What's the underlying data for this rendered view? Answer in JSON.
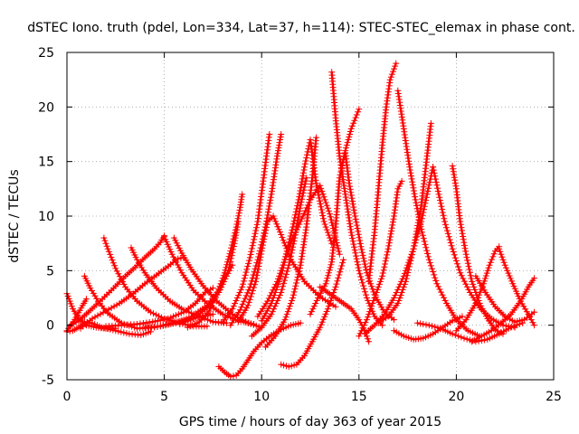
{
  "chart_data": {
    "type": "scatter",
    "title": "dSTEC Iono. truth (pdel, Lon=334, Lat=37, h=114): STEC-STEC_elemax in phase cont.",
    "xlabel": "GPS time / hours of day 363 of year 2015",
    "ylabel": "dSTEC  / TECUs",
    "xlim": [
      0,
      25
    ],
    "ylim": [
      -5,
      25
    ],
    "xticks": [
      0,
      5,
      10,
      15,
      20,
      25
    ],
    "yticks": [
      -5,
      0,
      5,
      10,
      15,
      20,
      25
    ],
    "grid": true,
    "marker": "plus",
    "color": "#ff0000",
    "series": [
      {
        "x": [
          0.0,
          0.3,
          0.6,
          1.0,
          1.5,
          2.0,
          2.5
        ],
        "y": [
          2.9,
          1.5,
          0.6,
          0.0,
          -0.2,
          -0.3,
          -0.3
        ]
      },
      {
        "x": [
          0.0,
          0.3,
          0.6,
          0.9,
          1.3,
          1.8,
          2.5,
          3.2,
          3.8,
          4.3
        ],
        "y": [
          -0.6,
          -0.5,
          -0.2,
          0.3,
          0.2,
          -0.2,
          -0.5,
          -0.8,
          -0.9,
          -0.6
        ]
      },
      {
        "x": [
          0.0,
          0.4,
          0.8,
          1.0
        ],
        "y": [
          -0.5,
          0.5,
          1.8,
          2.4
        ]
      },
      {
        "x": [
          0.9,
          1.2,
          1.6,
          2.1,
          2.8,
          3.6,
          4.5,
          5.4,
          6.2,
          7.0,
          7.5
        ],
        "y": [
          4.5,
          3.4,
          2.2,
          1.1,
          0.2,
          -0.3,
          -0.2,
          0.2,
          0.5,
          0.8,
          1.0
        ]
      },
      {
        "x": [
          1.9,
          2.1,
          2.5,
          3.0,
          3.6,
          4.3,
          5.0,
          5.8,
          6.5,
          7.2
        ],
        "y": [
          8.0,
          7.0,
          5.2,
          3.5,
          2.2,
          1.2,
          0.6,
          0.2,
          -0.1,
          -0.1
        ]
      },
      {
        "x": [
          3.3,
          3.6,
          4.0,
          4.6,
          5.3,
          6.0,
          6.8,
          7.5,
          8.2
        ],
        "y": [
          7.1,
          6.0,
          4.8,
          3.4,
          2.2,
          1.4,
          0.8,
          0.3,
          0.2
        ]
      },
      {
        "x": [
          0.2,
          0.6,
          1.1,
          1.7,
          2.4,
          3.0,
          3.5,
          4.0,
          4.5,
          4.8,
          5.0
        ],
        "y": [
          0.0,
          0.4,
          1.2,
          2.2,
          3.4,
          4.5,
          5.3,
          6.2,
          7.0,
          7.6,
          8.2
        ]
      },
      {
        "x": [
          0.7,
          1.3,
          2.0,
          2.7,
          3.4,
          4.0,
          4.6,
          5.2,
          5.7,
          6.0
        ],
        "y": [
          -0.3,
          0.6,
          1.3,
          2.0,
          2.9,
          3.8,
          4.6,
          5.4,
          6.1,
          6.2
        ]
      },
      {
        "x": [
          5.0,
          5.4,
          5.9,
          6.5,
          7.2,
          8.0,
          8.8,
          9.6
        ],
        "y": [
          8.1,
          6.5,
          4.8,
          3.2,
          2.0,
          1.0,
          0.4,
          0.1
        ]
      },
      {
        "x": [
          5.5,
          5.9,
          6.4,
          7.0,
          7.7,
          8.5,
          9.3,
          10.0
        ],
        "y": [
          8.0,
          6.6,
          5.1,
          3.6,
          2.2,
          1.0,
          0.2,
          -0.2
        ]
      },
      {
        "x": [
          2.0,
          2.8,
          3.6,
          4.4,
          5.2,
          6.0,
          6.6,
          7.1,
          7.5
        ],
        "y": [
          -0.1,
          0.0,
          0.1,
          0.3,
          0.6,
          1.2,
          2.0,
          3.0,
          3.4
        ]
      },
      {
        "x": [
          4.0,
          4.8,
          5.6,
          6.4,
          7.2,
          7.8,
          8.3,
          8.6,
          8.8
        ],
        "y": [
          -0.2,
          -0.1,
          0.2,
          0.8,
          1.8,
          3.2,
          5.0,
          7.5,
          9.5
        ]
      },
      {
        "x": [
          6.2,
          6.8,
          7.3,
          7.7,
          8.1,
          8.4,
          8.7,
          8.9,
          9.0
        ],
        "y": [
          -0.2,
          0.3,
          1.3,
          2.8,
          4.8,
          6.8,
          9.0,
          10.8,
          12.0
        ]
      },
      {
        "x": [
          5.8,
          6.5,
          7.2,
          7.8,
          8.2,
          8.5
        ],
        "y": [
          0.1,
          0.6,
          1.6,
          3.0,
          4.5,
          5.5
        ]
      },
      {
        "x": [
          7.8,
          8.1,
          8.4,
          8.7,
          9.0,
          9.3,
          9.6,
          10.0,
          10.5,
          11.0,
          11.5,
          12.0
        ],
        "y": [
          -3.8,
          -4.3,
          -4.7,
          -4.6,
          -4.0,
          -3.2,
          -2.4,
          -1.6,
          -0.9,
          -0.4,
          0.0,
          0.2
        ]
      },
      {
        "x": [
          8.0,
          8.5,
          9.0,
          9.4,
          9.8,
          10.1,
          10.4
        ],
        "y": [
          0.3,
          1.5,
          3.5,
          6.2,
          9.5,
          13.5,
          17.5
        ]
      },
      {
        "x": [
          8.4,
          8.9,
          9.4,
          9.8,
          10.2,
          10.5,
          10.8,
          11.0
        ],
        "y": [
          0.0,
          1.4,
          3.5,
          6.0,
          9.0,
          12.0,
          15.5,
          17.5
        ]
      },
      {
        "x": [
          8.8,
          9.3,
          9.7,
          10.0,
          10.3,
          10.6,
          11.0,
          11.5,
          12.2,
          13.0,
          13.8
        ],
        "y": [
          0.3,
          1.8,
          4.0,
          6.8,
          9.5,
          10.0,
          8.3,
          6.0,
          4.0,
          2.6,
          1.7
        ]
      },
      {
        "x": [
          9.5,
          10.0,
          10.5,
          11.0,
          11.4,
          11.7,
          12.0,
          12.3
        ],
        "y": [
          -1.0,
          -0.2,
          1.0,
          3.0,
          5.5,
          8.0,
          11.0,
          13.5
        ]
      },
      {
        "x": [
          10.2,
          10.7,
          11.2,
          11.6,
          12.0,
          12.3,
          12.6,
          12.8
        ],
        "y": [
          -2.0,
          -1.0,
          0.5,
          2.5,
          5.5,
          9.0,
          13.5,
          17.2
        ]
      },
      {
        "x": [
          10.0,
          10.5,
          11.0,
          11.3,
          11.6,
          11.9,
          12.2,
          12.5,
          12.8,
          13.2,
          13.6
        ],
        "y": [
          0.4,
          2.0,
          4.5,
          6.8,
          9.0,
          11.5,
          14.5,
          17.0,
          13.0,
          9.5,
          7.5
        ]
      },
      {
        "x": [
          9.8,
          10.3,
          10.8,
          11.2,
          11.6,
          12.0,
          12.5,
          13.0,
          13.5,
          14.0
        ],
        "y": [
          0.8,
          2.2,
          4.0,
          6.0,
          8.0,
          9.5,
          11.5,
          12.8,
          10.2,
          6.5
        ]
      },
      {
        "x": [
          11.0,
          11.4,
          11.8,
          12.2,
          12.6,
          13.0,
          13.4,
          13.8,
          14.2
        ],
        "y": [
          -3.6,
          -3.8,
          -3.6,
          -2.8,
          -1.5,
          -0.2,
          1.5,
          3.5,
          6.0
        ]
      },
      {
        "x": [
          12.5,
          12.9,
          13.3,
          13.6,
          13.8,
          14.0,
          14.3,
          14.6,
          15.0
        ],
        "y": [
          1.0,
          2.5,
          3.8,
          5.8,
          9.0,
          13.5,
          16.0,
          18.0,
          19.8
        ]
      },
      {
        "x": [
          13.6,
          13.8,
          14.0,
          14.3,
          14.6,
          15.0,
          15.4,
          15.8,
          16.2
        ],
        "y": [
          23.2,
          19.0,
          15.5,
          12.0,
          8.5,
          5.0,
          2.5,
          0.8,
          0.0
        ]
      },
      {
        "x": [
          14.3,
          14.5,
          14.8,
          15.1,
          15.4,
          15.8,
          16.3,
          16.8
        ],
        "y": [
          15.8,
          13.0,
          10.0,
          7.2,
          4.8,
          2.8,
          1.2,
          0.5
        ]
      },
      {
        "x": [
          13.0,
          13.4,
          13.8,
          14.2,
          14.6,
          15.0,
          15.3,
          15.5
        ],
        "y": [
          3.5,
          3.0,
          2.5,
          2.0,
          1.5,
          0.5,
          -0.5,
          -1.5
        ]
      },
      {
        "x": [
          15.5,
          15.8,
          16.0,
          16.2,
          16.4,
          16.6,
          16.9
        ],
        "y": [
          4.0,
          8.5,
          12.5,
          16.5,
          20.0,
          22.5,
          24.0
        ]
      },
      {
        "x": [
          15.0,
          15.4,
          15.8,
          16.2,
          16.5,
          16.8,
          17.0,
          17.2
        ],
        "y": [
          -1.0,
          0.5,
          2.5,
          4.5,
          7.0,
          10.0,
          12.5,
          13.2
        ]
      },
      {
        "x": [
          17.0,
          17.3,
          17.6,
          17.9,
          18.2,
          18.6,
          19.0,
          19.5,
          20.0,
          20.6,
          21.2
        ],
        "y": [
          21.5,
          18.0,
          14.5,
          11.5,
          8.8,
          6.0,
          3.8,
          2.0,
          0.5,
          -0.5,
          -1.0
        ]
      },
      {
        "x": [
          16.0,
          16.5,
          17.0,
          17.4,
          17.8,
          18.2,
          18.5,
          18.7
        ],
        "y": [
          0.2,
          0.8,
          2.0,
          4.0,
          7.0,
          11.0,
          15.5,
          18.5
        ]
      },
      {
        "x": [
          15.3,
          15.8,
          16.3,
          16.8,
          17.3,
          17.8,
          18.2,
          18.5,
          18.8
        ],
        "y": [
          -0.8,
          0.0,
          1.0,
          2.5,
          4.5,
          7.0,
          9.5,
          12.0,
          14.5
        ]
      },
      {
        "x": [
          18.8,
          19.1,
          19.4,
          19.8,
          20.2,
          20.7,
          21.2,
          21.8,
          22.4,
          23.0
        ],
        "y": [
          14.5,
          12.0,
          9.5,
          7.0,
          4.8,
          3.0,
          1.6,
          0.6,
          0.0,
          -0.2
        ]
      },
      {
        "x": [
          19.8,
          20.0,
          20.2,
          20.5,
          20.8,
          21.2,
          21.6,
          22.0,
          22.4
        ],
        "y": [
          14.6,
          12.5,
          9.5,
          6.5,
          4.0,
          2.0,
          0.6,
          -0.4,
          -0.8
        ]
      },
      {
        "x": [
          20.0,
          20.5,
          21.0,
          21.4,
          21.7,
          22.0,
          22.2
        ],
        "y": [
          -0.5,
          0.5,
          2.0,
          3.8,
          5.5,
          6.8,
          7.2
        ]
      },
      {
        "x": [
          22.2,
          22.5,
          22.9,
          23.3,
          23.7,
          24.0
        ],
        "y": [
          7.0,
          5.5,
          3.8,
          2.2,
          1.0,
          0.0
        ]
      },
      {
        "x": [
          21.0,
          21.5,
          22.0,
          22.5,
          23.0,
          23.5,
          24.0
        ],
        "y": [
          4.5,
          3.0,
          1.7,
          0.8,
          0.3,
          0.5,
          1.2
        ]
      },
      {
        "x": [
          20.8,
          21.3,
          21.8,
          22.3,
          22.8,
          23.3,
          23.7,
          24.0
        ],
        "y": [
          -1.5,
          -1.0,
          -0.5,
          0.2,
          1.0,
          2.2,
          3.5,
          4.3
        ]
      },
      {
        "x": [
          16.8,
          17.3,
          17.8,
          18.3,
          18.8,
          19.3,
          19.8,
          20.3
        ],
        "y": [
          -0.5,
          -1.0,
          -1.3,
          -1.2,
          -0.8,
          -0.2,
          0.4,
          0.8
        ]
      },
      {
        "x": [
          18.0,
          18.6,
          19.2,
          19.8,
          20.4,
          21.0,
          21.6,
          22.2,
          22.8,
          23.4
        ],
        "y": [
          0.2,
          0.0,
          -0.3,
          -0.8,
          -1.2,
          -1.5,
          -1.3,
          -0.8,
          -0.2,
          0.2
        ]
      }
    ]
  }
}
